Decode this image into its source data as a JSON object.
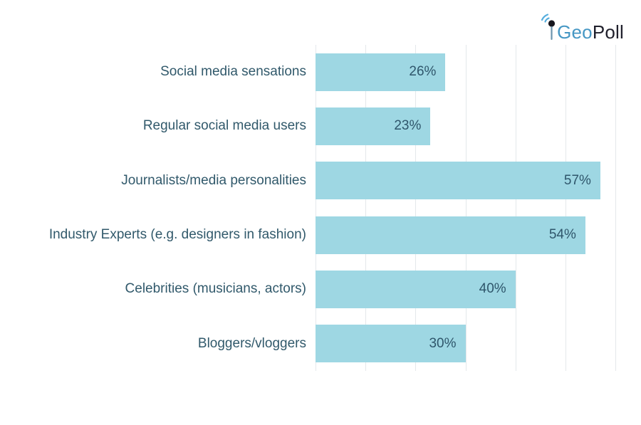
{
  "logo": {
    "part1": "Geo",
    "part2": "Poll",
    "icon": "antenna-signal-icon",
    "geo_color": "#4597c4",
    "poll_color": "#20202c"
  },
  "chart_data": {
    "type": "bar",
    "orientation": "horizontal",
    "title": "",
    "xlabel": "",
    "ylabel": "",
    "categories": [
      "Social media sensations",
      "Regular social media users",
      "Journalists/media personalities",
      "Industry Experts (e.g. designers in fashion)",
      "Celebrities (musicians, actors)",
      "Bloggers/vloggers"
    ],
    "values": [
      26,
      23,
      57,
      54,
      40,
      30
    ],
    "value_labels": [
      "26%",
      "23%",
      "57%",
      "54%",
      "40%",
      "30%"
    ],
    "xlim": [
      0,
      60
    ],
    "grid_step": 10,
    "grid": true,
    "x_tick_labels_shown": false,
    "legend": false,
    "bar_color": "#9ed7e3",
    "label_color": "#31596b",
    "value_label_color": "#2f566b",
    "gridline_color": "#e4e8eb",
    "background_color": "#ffffff"
  }
}
